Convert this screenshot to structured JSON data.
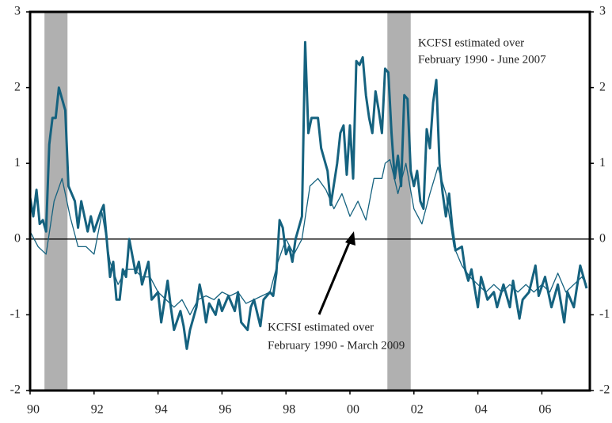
{
  "chart_data": {
    "type": "line",
    "xlim": [
      1990,
      2007.5
    ],
    "xticks": [
      {
        "value": 1990,
        "label": "90"
      },
      {
        "value": 1992,
        "label": "92"
      },
      {
        "value": 1994,
        "label": "94"
      },
      {
        "value": 1996,
        "label": "96"
      },
      {
        "value": 1998,
        "label": "98"
      },
      {
        "value": 2000,
        "label": "00"
      },
      {
        "value": 2002,
        "label": "02"
      },
      {
        "value": 2004,
        "label": "04"
      },
      {
        "value": 2006,
        "label": "06"
      }
    ],
    "ylim": [
      -2,
      3
    ],
    "yticks": [
      -2,
      -1,
      0,
      1,
      2,
      3
    ],
    "y2lim": [
      -2,
      3
    ],
    "y2ticks": [
      -2,
      -1,
      0,
      1,
      2,
      3
    ],
    "recessions": [
      [
        1990.45,
        1991.17
      ],
      [
        2001.17,
        2001.9
      ]
    ],
    "recession_color": "#b0b0b0",
    "series": [
      {
        "color": "#15627f",
        "width": 3,
        "x": [
          1990.0,
          1990.1,
          1990.2,
          1990.3,
          1990.4,
          1990.5,
          1990.6,
          1990.7,
          1990.8,
          1990.9,
          1991.0,
          1991.1,
          1991.2,
          1991.4,
          1991.5,
          1991.6,
          1991.8,
          1991.9,
          1992.0,
          1992.2,
          1992.3,
          1992.5,
          1992.6,
          1992.7,
          1992.8,
          1992.9,
          1993.0,
          1993.1,
          1993.3,
          1993.4,
          1993.5,
          1993.7,
          1993.8,
          1994.0,
          1994.1,
          1994.3,
          1994.4,
          1994.5,
          1994.7,
          1994.8,
          1994.9,
          1995.0,
          1995.2,
          1995.3,
          1995.4,
          1995.5,
          1995.6,
          1995.8,
          1995.9,
          1996.0,
          1996.2,
          1996.4,
          1996.5,
          1996.6,
          1996.8,
          1996.9,
          1997.0,
          1997.2,
          1997.3,
          1997.5,
          1997.6,
          1997.7,
          1997.8,
          1997.9,
          1998.0,
          1998.1,
          1998.2,
          1998.3,
          1998.5,
          1998.6,
          1998.7,
          1998.8,
          1999.0,
          1999.1,
          1999.3,
          1999.4,
          1999.6,
          1999.7,
          1999.8,
          1999.9,
          2000.0,
          2000.1,
          2000.2,
          2000.3,
          2000.4,
          2000.5,
          2000.6,
          2000.7,
          2000.8,
          2000.9,
          2001.0,
          2001.1,
          2001.2,
          2001.3,
          2001.4,
          2001.5,
          2001.6,
          2001.7,
          2001.8,
          2001.9,
          2002.0,
          2002.1,
          2002.2,
          2002.3,
          2002.4,
          2002.5,
          2002.6,
          2002.7,
          2002.8,
          2002.9,
          2003.0,
          2003.1,
          2003.2,
          2003.3,
          2003.5,
          2003.6,
          2003.7,
          2003.8,
          2004.0,
          2004.1,
          2004.3,
          2004.5,
          2004.6,
          2004.8,
          2005.0,
          2005.1,
          2005.3,
          2005.4,
          2005.6,
          2005.8,
          2005.9,
          2006.1,
          2006.3,
          2006.5,
          2006.7,
          2006.8,
          2007.0,
          2007.2,
          2007.4
        ],
        "values": [
          0.55,
          0.3,
          0.65,
          0.2,
          0.25,
          0.1,
          1.25,
          1.6,
          1.6,
          2.0,
          1.85,
          1.7,
          0.7,
          0.5,
          0.15,
          0.5,
          0.1,
          0.3,
          0.1,
          0.35,
          0.45,
          -0.5,
          -0.3,
          -0.8,
          -0.8,
          -0.4,
          -0.5,
          0,
          -0.45,
          -0.3,
          -0.6,
          -0.3,
          -0.8,
          -0.7,
          -1.1,
          -0.55,
          -0.9,
          -1.2,
          -0.95,
          -1.15,
          -1.45,
          -1.2,
          -0.9,
          -0.6,
          -0.8,
          -1.1,
          -0.85,
          -1.0,
          -0.8,
          -0.95,
          -0.75,
          -0.95,
          -0.7,
          -1.1,
          -1.2,
          -0.9,
          -0.8,
          -1.15,
          -0.8,
          -0.7,
          -0.75,
          -0.45,
          0.25,
          0.15,
          -0.2,
          -0.1,
          -0.3,
          0,
          0.3,
          2.6,
          1.4,
          1.6,
          1.6,
          1.2,
          0.9,
          0.45,
          1.0,
          1.4,
          1.5,
          0.85,
          1.5,
          0.8,
          2.35,
          2.3,
          2.4,
          1.9,
          1.6,
          1.4,
          1.95,
          1.7,
          1.4,
          2.25,
          2.2,
          1.4,
          0.8,
          1.1,
          0.7,
          1.9,
          1.85,
          0.9,
          0.7,
          0.9,
          0.5,
          0.4,
          1.45,
          1.2,
          1.8,
          2.1,
          1.0,
          0.6,
          0.3,
          0.6,
          0.15,
          -0.15,
          -0.1,
          -0.4,
          -0.55,
          -0.4,
          -0.9,
          -0.5,
          -0.8,
          -0.7,
          -0.9,
          -0.6,
          -0.9,
          -0.55,
          -1.05,
          -0.8,
          -0.7,
          -0.35,
          -0.75,
          -0.5,
          -0.9,
          -0.6,
          -1.1,
          -0.7,
          -0.9,
          -0.35,
          -0.65
        ]
      },
      {
        "color": "#15627f",
        "width": 1.3,
        "x": [
          1990.0,
          1990.25,
          1990.5,
          1990.75,
          1991.0,
          1991.25,
          1991.5,
          1991.75,
          1992.0,
          1992.25,
          1992.5,
          1992.75,
          1993.0,
          1993.25,
          1993.5,
          1993.75,
          1994.0,
          1994.25,
          1994.5,
          1994.75,
          1995.0,
          1995.25,
          1995.5,
          1995.75,
          1996.0,
          1996.25,
          1996.5,
          1996.75,
          1997.0,
          1997.25,
          1997.5,
          1997.75,
          1998.0,
          1998.25,
          1998.5,
          1998.75,
          1999.0,
          1999.25,
          1999.5,
          1999.75,
          2000.0,
          2000.25,
          2000.5,
          2000.75,
          2001.0,
          2001.1,
          2001.25,
          2001.5,
          2001.75,
          2002.0,
          2002.25,
          2002.5,
          2002.75,
          2003.0,
          2003.25,
          2003.5,
          2003.75,
          2004.0,
          2004.25,
          2004.5,
          2004.75,
          2005.0,
          2005.25,
          2005.5,
          2005.75,
          2006.0,
          2006.25,
          2006.5,
          2006.75,
          2007.0,
          2007.25,
          2007.4
        ],
        "values": [
          0.1,
          -0.1,
          -0.2,
          0.5,
          0.8,
          0.3,
          -0.1,
          -0.1,
          -0.2,
          0.35,
          -0.3,
          -0.6,
          -0.4,
          -0.4,
          -0.5,
          -0.5,
          -0.7,
          -0.8,
          -0.9,
          -0.8,
          -1.0,
          -0.8,
          -0.75,
          -0.8,
          -0.7,
          -0.75,
          -0.7,
          -0.85,
          -0.8,
          -0.75,
          -0.7,
          -0.3,
          0.0,
          -0.2,
          0.0,
          0.7,
          0.8,
          0.65,
          0.4,
          0.6,
          0.3,
          0.5,
          0.25,
          0.8,
          0.8,
          1.0,
          1.05,
          0.6,
          1.0,
          0.4,
          0.2,
          0.6,
          0.95,
          0.6,
          -0.1,
          -0.35,
          -0.5,
          -0.6,
          -0.7,
          -0.6,
          -0.7,
          -0.6,
          -0.7,
          -0.6,
          -0.7,
          -0.6,
          -0.7,
          -0.45,
          -0.7,
          -0.6,
          -0.5,
          -0.6
        ]
      }
    ],
    "annotations": [
      {
        "lines": [
          "KCFSI estimated over",
          "February 1990 - June 2007"
        ]
      },
      {
        "lines": [
          "KCFSI estimated over",
          "February 1990 - March 2009"
        ]
      }
    ]
  }
}
